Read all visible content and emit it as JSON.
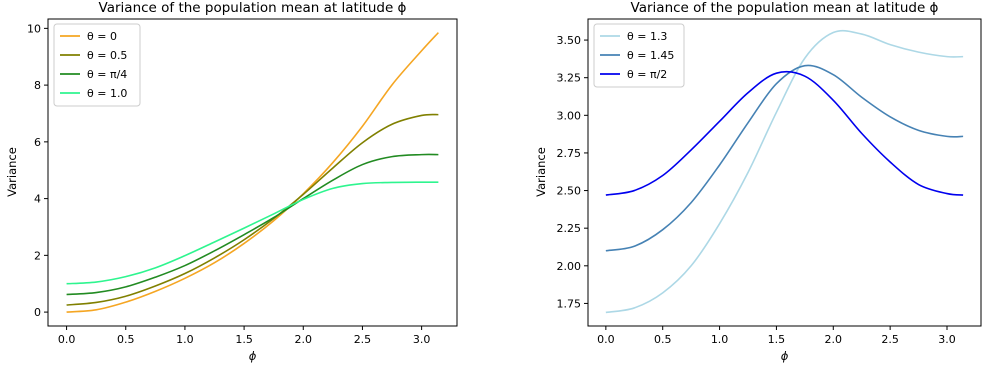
{
  "chart_data": [
    {
      "type": "line",
      "title": "Variance of the population mean at latitude ϕ",
      "xlabel": "ϕ",
      "ylabel": "Variance",
      "xlim": [
        -0.157,
        3.299
      ],
      "ylim": [
        -0.49,
        10.33
      ],
      "xticks": [
        0.0,
        0.5,
        1.0,
        1.5,
        2.0,
        2.5,
        3.0
      ],
      "xtick_labels": [
        "0.0",
        "0.5",
        "1.0",
        "1.5",
        "2.0",
        "2.5",
        "3.0"
      ],
      "yticks": [
        0,
        2,
        4,
        6,
        8,
        10
      ],
      "ytick_labels": [
        "0",
        "2",
        "4",
        "6",
        "8",
        "10"
      ],
      "legend": "top-left",
      "grid": false,
      "x": [
        0,
        0.25,
        0.5,
        0.75,
        1.0,
        1.25,
        1.5,
        1.75,
        2.0,
        2.25,
        2.5,
        2.75,
        3.0,
        3.1416
      ],
      "series": [
        {
          "name": "θ = 0",
          "color": "#f5a623",
          "values": [
            0.0,
            0.08,
            0.35,
            0.73,
            1.19,
            1.74,
            2.42,
            3.22,
            4.17,
            5.27,
            6.55,
            8.01,
            9.21,
            9.85
          ]
        },
        {
          "name": "θ = 0.5",
          "color": "#808000",
          "values": [
            0.25,
            0.34,
            0.56,
            0.92,
            1.36,
            1.91,
            2.55,
            3.3,
            4.15,
            5.08,
            5.97,
            6.62,
            6.93,
            6.96
          ]
        },
        {
          "name": "θ = π/4",
          "color": "#228b22",
          "values": [
            0.62,
            0.69,
            0.89,
            1.23,
            1.64,
            2.16,
            2.73,
            3.33,
            4.0,
            4.65,
            5.2,
            5.48,
            5.55,
            5.55
          ]
        },
        {
          "name": "θ = 1.0",
          "color": "#2ef58f",
          "values": [
            1.0,
            1.06,
            1.25,
            1.56,
            1.99,
            2.47,
            2.96,
            3.46,
            3.97,
            4.36,
            4.53,
            4.57,
            4.58,
            4.58
          ]
        }
      ]
    },
    {
      "type": "line",
      "title": "Variance of the population mean at latitude ϕ",
      "xlabel": "ϕ",
      "ylabel": "Variance",
      "xlim": [
        -0.157,
        3.299
      ],
      "ylim": [
        1.6,
        3.64
      ],
      "xticks": [
        0.0,
        0.5,
        1.0,
        1.5,
        2.0,
        2.5,
        3.0
      ],
      "xtick_labels": [
        "0.0",
        "0.5",
        "1.0",
        "1.5",
        "2.0",
        "2.5",
        "3.0"
      ],
      "yticks": [
        1.75,
        2.0,
        2.25,
        2.5,
        2.75,
        3.0,
        3.25,
        3.5
      ],
      "ytick_labels": [
        "1.75",
        "2.00",
        "2.25",
        "2.50",
        "2.75",
        "3.00",
        "3.25",
        "3.50"
      ],
      "legend": "top-left",
      "grid": false,
      "x": [
        0,
        0.25,
        0.5,
        0.75,
        1.0,
        1.25,
        1.5,
        1.75,
        2.0,
        2.25,
        2.5,
        2.75,
        3.0,
        3.1416
      ],
      "series": [
        {
          "name": "θ = 1.3",
          "color": "#add8e6",
          "values": [
            1.69,
            1.72,
            1.82,
            2.0,
            2.28,
            2.62,
            3.02,
            3.38,
            3.55,
            3.54,
            3.47,
            3.42,
            3.39,
            3.39
          ]
        },
        {
          "name": "θ = 1.45",
          "color": "#4682b4",
          "values": [
            2.1,
            2.13,
            2.24,
            2.42,
            2.67,
            2.95,
            3.21,
            3.33,
            3.27,
            3.12,
            2.99,
            2.9,
            2.86,
            2.86
          ]
        },
        {
          "name": "θ = π/2",
          "color": "#0000ee",
          "values": [
            2.47,
            2.5,
            2.6,
            2.77,
            2.96,
            3.15,
            3.28,
            3.26,
            3.1,
            2.88,
            2.69,
            2.54,
            2.48,
            2.47
          ]
        }
      ]
    }
  ]
}
